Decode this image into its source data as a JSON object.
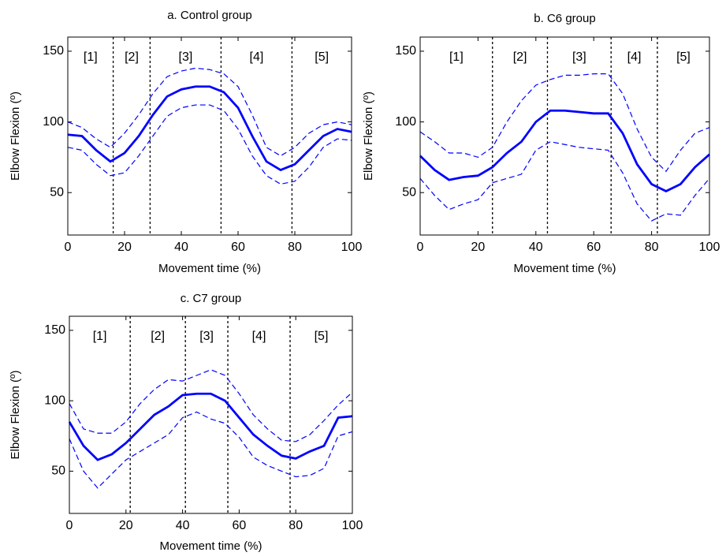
{
  "chart_data": [
    {
      "type": "line",
      "title": "a. Control group",
      "xlabel": "Movement time (%)",
      "ylabel": "Elbow Flexion (º)",
      "x": [
        0,
        5,
        10,
        15,
        20,
        25,
        30,
        35,
        40,
        45,
        50,
        55,
        60,
        65,
        70,
        75,
        80,
        85,
        90,
        95,
        100
      ],
      "series": [
        {
          "color": "#0000ff",
          "style": "solid",
          "values": [
            91,
            90,
            80,
            72,
            78,
            90,
            105,
            118,
            123,
            125,
            125,
            121,
            110,
            90,
            72,
            66,
            70,
            80,
            90,
            95,
            93
          ]
        },
        {
          "color": "#0000ff",
          "style": "dashed",
          "values": [
            100,
            96,
            88,
            82,
            92,
            105,
            120,
            132,
            136,
            138,
            137,
            134,
            125,
            105,
            82,
            76,
            82,
            92,
            98,
            100,
            98
          ]
        },
        {
          "color": "#0000ff",
          "style": "dashed",
          "values": [
            82,
            80,
            70,
            62,
            64,
            76,
            90,
            104,
            110,
            112,
            112,
            108,
            95,
            76,
            62,
            56,
            58,
            68,
            82,
            88,
            87
          ]
        }
      ],
      "phase_boundaries": [
        16,
        29,
        54,
        79
      ],
      "phase_labels": [
        "[1]",
        "[2]",
        "[3]",
        "[4]",
        "[5]"
      ],
      "xlim": [
        0,
        100
      ],
      "ylim": [
        20,
        160
      ],
      "xticks": [
        0,
        20,
        40,
        60,
        80,
        100
      ],
      "yticks": [
        50,
        100,
        150
      ]
    },
    {
      "type": "line",
      "title": "b. C6 group",
      "xlabel": "Movement time (%)",
      "ylabel": "Elbow Flexion (º)",
      "x": [
        0,
        5,
        10,
        15,
        20,
        25,
        30,
        35,
        40,
        45,
        50,
        55,
        60,
        65,
        70,
        75,
        80,
        85,
        90,
        95,
        100
      ],
      "series": [
        {
          "color": "#0000ff",
          "style": "solid",
          "values": [
            76,
            66,
            59,
            61,
            62,
            68,
            78,
            86,
            100,
            108,
            108,
            107,
            106,
            106,
            92,
            70,
            56,
            51,
            56,
            68,
            77
          ]
        },
        {
          "color": "#0000ff",
          "style": "dashed",
          "values": [
            93,
            86,
            78,
            78,
            75,
            82,
            100,
            115,
            126,
            130,
            133,
            133,
            134,
            134,
            120,
            95,
            75,
            65,
            80,
            92,
            96
          ]
        },
        {
          "color": "#0000ff",
          "style": "dashed",
          "values": [
            60,
            48,
            38,
            42,
            45,
            57,
            60,
            63,
            80,
            86,
            84,
            82,
            81,
            80,
            64,
            42,
            30,
            35,
            34,
            48,
            60
          ]
        }
      ],
      "phase_boundaries": [
        25,
        44,
        66,
        82
      ],
      "phase_labels": [
        "[1]",
        "[2]",
        "[3]",
        "[4]",
        "[5]"
      ],
      "xlim": [
        0,
        100
      ],
      "ylim": [
        20,
        160
      ],
      "xticks": [
        0,
        20,
        40,
        60,
        80,
        100
      ],
      "yticks": [
        50,
        100,
        150
      ]
    },
    {
      "type": "line",
      "title": "c. C7 group",
      "xlabel": "Movement time (%)",
      "ylabel": "Elbow Flexion (º)",
      "x": [
        0,
        5,
        10,
        15,
        20,
        25,
        30,
        35,
        40,
        45,
        50,
        55,
        60,
        65,
        70,
        75,
        80,
        85,
        90,
        95,
        100
      ],
      "series": [
        {
          "color": "#0000ff",
          "style": "solid",
          "values": [
            85,
            68,
            58,
            62,
            70,
            80,
            90,
            96,
            104,
            105,
            105,
            100,
            88,
            76,
            68,
            61,
            59,
            64,
            68,
            88,
            89
          ]
        },
        {
          "color": "#0000ff",
          "style": "dashed",
          "values": [
            98,
            80,
            77,
            77,
            85,
            98,
            108,
            115,
            114,
            118,
            122,
            118,
            105,
            90,
            80,
            72,
            71,
            76,
            86,
            97,
            106
          ]
        },
        {
          "color": "#0000ff",
          "style": "dashed",
          "values": [
            73,
            50,
            38,
            48,
            58,
            64,
            70,
            76,
            88,
            92,
            87,
            84,
            74,
            60,
            54,
            50,
            46,
            47,
            52,
            75,
            78
          ]
        }
      ],
      "phase_boundaries": [
        21.5,
        41,
        56,
        78
      ],
      "phase_labels": [
        "[1]",
        "[2]",
        "[3]",
        "[4]",
        "[5]"
      ],
      "xlim": [
        0,
        100
      ],
      "ylim": [
        20,
        160
      ],
      "xticks": [
        0,
        20,
        40,
        60,
        80,
        100
      ],
      "yticks": [
        50,
        100,
        150
      ]
    }
  ]
}
